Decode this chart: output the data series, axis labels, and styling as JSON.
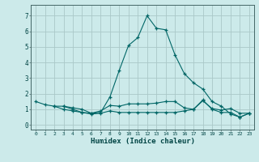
{
  "title": "",
  "xlabel": "Humidex (Indice chaleur)",
  "bg_color": "#cceaea",
  "grid_color": "#aac8c8",
  "line_color": "#006666",
  "xlim": [
    -0.5,
    23.5
  ],
  "ylim": [
    -0.3,
    7.7
  ],
  "yticks": [
    0,
    1,
    2,
    3,
    4,
    5,
    6,
    7
  ],
  "xticks": [
    0,
    1,
    2,
    3,
    4,
    5,
    6,
    7,
    8,
    9,
    10,
    11,
    12,
    13,
    14,
    15,
    16,
    17,
    18,
    19,
    20,
    21,
    22,
    23
  ],
  "series": [
    {
      "x": [
        0,
        1,
        2,
        3,
        4,
        5,
        6,
        7,
        8,
        9,
        10,
        11,
        12,
        13,
        14,
        15,
        16,
        17,
        18,
        19,
        20,
        21,
        22,
        23
      ],
      "y": [
        1.5,
        1.3,
        1.2,
        1.0,
        0.9,
        0.8,
        0.75,
        0.8,
        1.8,
        3.5,
        5.1,
        5.6,
        7.0,
        6.2,
        6.1,
        4.5,
        3.3,
        2.7,
        2.3,
        1.5,
        1.2,
        0.7,
        0.5,
        0.75
      ]
    },
    {
      "x": [
        2,
        3,
        4,
        5,
        6,
        7,
        8,
        9,
        10,
        11,
        12,
        13,
        14,
        15,
        16,
        17,
        18,
        19,
        20,
        21,
        22,
        23
      ],
      "y": [
        1.2,
        1.2,
        1.1,
        1.0,
        0.75,
        0.9,
        1.25,
        1.2,
        1.35,
        1.35,
        1.35,
        1.4,
        1.5,
        1.5,
        1.1,
        1.0,
        1.55,
        1.05,
        0.95,
        1.05,
        0.75,
        0.75
      ]
    },
    {
      "x": [
        3,
        4,
        5,
        6,
        7,
        8,
        9,
        10,
        11,
        12,
        13,
        14,
        15,
        16,
        17,
        18,
        19,
        20,
        21,
        22,
        23
      ],
      "y": [
        1.2,
        1.0,
        0.8,
        0.7,
        0.75,
        0.9,
        0.8,
        0.8,
        0.8,
        0.8,
        0.8,
        0.8,
        0.8,
        0.9,
        1.0,
        1.6,
        1.0,
        0.8,
        0.8,
        0.5,
        0.75
      ]
    }
  ]
}
